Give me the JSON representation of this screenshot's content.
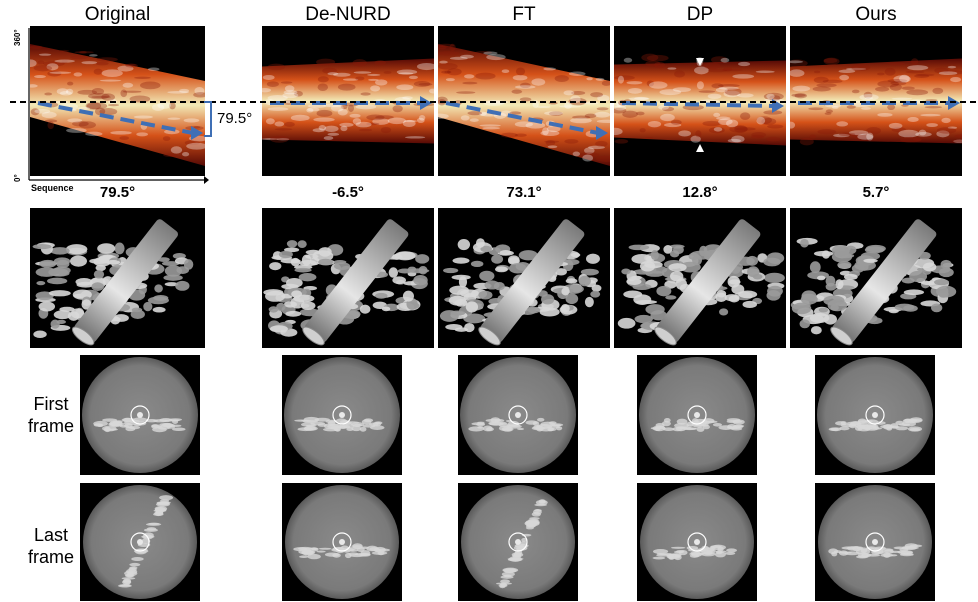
{
  "columns": [
    {
      "key": "original",
      "title": "Original",
      "angle": "79.5°",
      "flow": "down"
    },
    {
      "key": "denurd",
      "title": "De-NURD",
      "angle": "-6.5°",
      "flow": "flat"
    },
    {
      "key": "ft",
      "title": "FT",
      "angle": "73.1°",
      "flow": "down"
    },
    {
      "key": "dp",
      "title": "DP",
      "angle": "12.8°",
      "flow": "slight"
    },
    {
      "key": "ours",
      "title": "Ours",
      "angle": "5.7°",
      "flow": "flat"
    }
  ],
  "axis": {
    "top_tick": "360°",
    "bottom_tick": "0°",
    "x_label": "Sequence"
  },
  "bracket_label": "79.5°",
  "row_labels": {
    "first": "First\nframe",
    "last": "Last\nframe"
  },
  "colors": {
    "arrow": "#3f6fb5",
    "background": "#000000",
    "heat_hot": "#fff6c0",
    "heat_mid": "#e0561a",
    "heat_low": "#5a0a05"
  }
}
